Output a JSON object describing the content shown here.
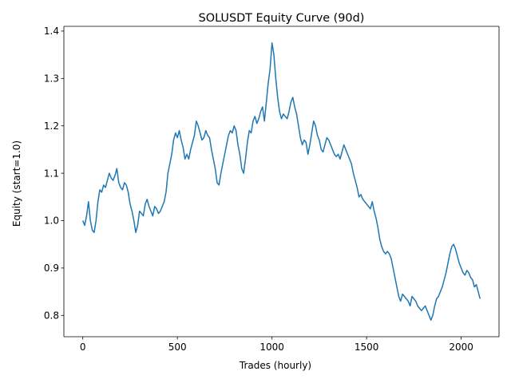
{
  "chart_data": {
    "type": "line",
    "title": "SOLUSDT Equity Curve (90d)",
    "xlabel": "Trades (hourly)",
    "ylabel": "Equity (start=1.0)",
    "xlim": [
      -100,
      2200
    ],
    "ylim": [
      0.755,
      1.41
    ],
    "xticks": [
      0,
      500,
      1000,
      1500,
      2000
    ],
    "yticks": [
      0.8,
      0.9,
      1.0,
      1.1,
      1.2,
      1.3,
      1.4
    ],
    "grid": false,
    "line_color": "#1f77b4",
    "series": [
      {
        "x": [
          0,
          10,
          20,
          30,
          40,
          50,
          60,
          70,
          80,
          90,
          100,
          110,
          120,
          130,
          140,
          150,
          160,
          170,
          180,
          190,
          200,
          210,
          220,
          230,
          240,
          250,
          260,
          270,
          280,
          290,
          300,
          310,
          320,
          330,
          340,
          350,
          360,
          370,
          380,
          390,
          400,
          410,
          420,
          430,
          440,
          450,
          460,
          470,
          480,
          490,
          500,
          510,
          520,
          530,
          540,
          550,
          560,
          570,
          580,
          590,
          600,
          610,
          620,
          630,
          640,
          650,
          660,
          670,
          680,
          690,
          700,
          710,
          720,
          730,
          740,
          750,
          760,
          770,
          780,
          790,
          800,
          810,
          820,
          830,
          840,
          850,
          860,
          870,
          880,
          890,
          900,
          910,
          920,
          930,
          940,
          950,
          960,
          970,
          980,
          990,
          1000,
          1010,
          1020,
          1030,
          1040,
          1050,
          1060,
          1070,
          1080,
          1090,
          1100,
          1110,
          1120,
          1130,
          1140,
          1150,
          1160,
          1170,
          1180,
          1190,
          1200,
          1210,
          1220,
          1230,
          1240,
          1250,
          1260,
          1270,
          1280,
          1290,
          1300,
          1310,
          1320,
          1330,
          1340,
          1350,
          1360,
          1370,
          1380,
          1390,
          1400,
          1410,
          1420,
          1430,
          1440,
          1450,
          1460,
          1470,
          1480,
          1490,
          1500,
          1510,
          1520,
          1530,
          1540,
          1550,
          1560,
          1570,
          1580,
          1590,
          1600,
          1610,
          1620,
          1630,
          1640,
          1650,
          1660,
          1670,
          1680,
          1690,
          1700,
          1710,
          1720,
          1730,
          1740,
          1750,
          1760,
          1770,
          1780,
          1790,
          1800,
          1810,
          1820,
          1830,
          1840,
          1850,
          1860,
          1870,
          1880,
          1890,
          1900,
          1910,
          1920,
          1930,
          1940,
          1950,
          1960,
          1970,
          1980,
          1990,
          2000,
          2010,
          2020,
          2030,
          2040,
          2050,
          2060,
          2070,
          2080,
          2090,
          2100
        ],
        "values": [
          1.0,
          0.99,
          1.01,
          1.04,
          1.0,
          0.98,
          0.975,
          1.0,
          1.04,
          1.065,
          1.06,
          1.075,
          1.07,
          1.085,
          1.1,
          1.09,
          1.085,
          1.095,
          1.11,
          1.08,
          1.07,
          1.065,
          1.08,
          1.075,
          1.06,
          1.035,
          1.02,
          1.0,
          0.975,
          0.99,
          1.02,
          1.015,
          1.01,
          1.035,
          1.045,
          1.03,
          1.02,
          1.01,
          1.03,
          1.025,
          1.015,
          1.02,
          1.03,
          1.04,
          1.06,
          1.1,
          1.12,
          1.14,
          1.17,
          1.185,
          1.175,
          1.19,
          1.17,
          1.155,
          1.13,
          1.14,
          1.13,
          1.15,
          1.165,
          1.18,
          1.21,
          1.2,
          1.185,
          1.17,
          1.175,
          1.19,
          1.18,
          1.175,
          1.15,
          1.13,
          1.11,
          1.08,
          1.075,
          1.1,
          1.12,
          1.14,
          1.16,
          1.18,
          1.19,
          1.185,
          1.2,
          1.19,
          1.16,
          1.14,
          1.11,
          1.1,
          1.13,
          1.165,
          1.19,
          1.185,
          1.21,
          1.22,
          1.205,
          1.215,
          1.23,
          1.24,
          1.21,
          1.25,
          1.29,
          1.32,
          1.375,
          1.35,
          1.3,
          1.26,
          1.23,
          1.215,
          1.225,
          1.22,
          1.215,
          1.23,
          1.25,
          1.26,
          1.24,
          1.225,
          1.2,
          1.175,
          1.16,
          1.17,
          1.165,
          1.14,
          1.16,
          1.185,
          1.21,
          1.2,
          1.18,
          1.17,
          1.15,
          1.145,
          1.16,
          1.175,
          1.17,
          1.16,
          1.15,
          1.14,
          1.135,
          1.14,
          1.13,
          1.145,
          1.16,
          1.15,
          1.14,
          1.13,
          1.12,
          1.1,
          1.085,
          1.07,
          1.05,
          1.055,
          1.045,
          1.04,
          1.035,
          1.03,
          1.025,
          1.04,
          1.02,
          1.005,
          0.985,
          0.96,
          0.945,
          0.935,
          0.93,
          0.935,
          0.93,
          0.92,
          0.9,
          0.88,
          0.86,
          0.84,
          0.83,
          0.845,
          0.84,
          0.835,
          0.83,
          0.82,
          0.84,
          0.835,
          0.83,
          0.82,
          0.815,
          0.81,
          0.815,
          0.82,
          0.81,
          0.8,
          0.79,
          0.8,
          0.82,
          0.835,
          0.84,
          0.85,
          0.86,
          0.875,
          0.89,
          0.91,
          0.93,
          0.945,
          0.95,
          0.94,
          0.925,
          0.91,
          0.9,
          0.89,
          0.885,
          0.895,
          0.89,
          0.88,
          0.875,
          0.86,
          0.865,
          0.85,
          0.835
        ]
      }
    ]
  }
}
